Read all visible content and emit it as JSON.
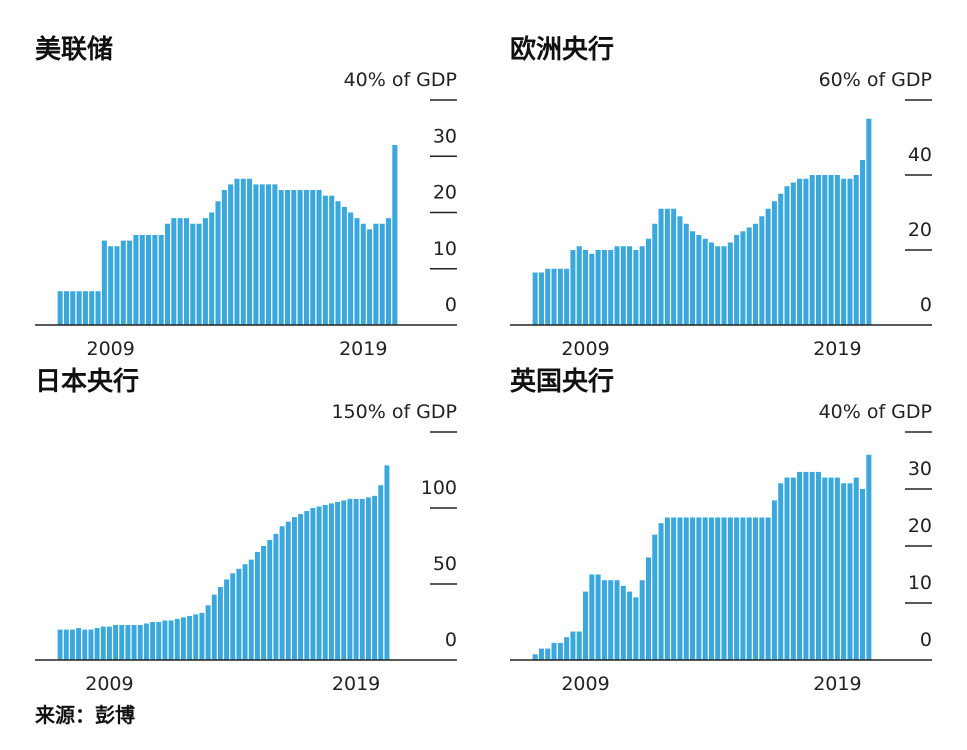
{
  "source": "来源：彭博",
  "chart_data": [
    {
      "type": "bar",
      "title": "美联储",
      "color": "#3aa8dc",
      "categories": [
        null,
        null,
        null,
        null,
        null,
        null,
        null,
        null,
        "2009",
        null,
        null,
        null,
        null,
        null,
        null,
        null,
        null,
        null,
        null,
        null,
        null,
        null,
        null,
        null,
        null,
        null,
        null,
        null,
        null,
        null,
        null,
        null,
        null,
        null,
        null,
        null,
        null,
        null,
        null,
        null,
        null,
        null,
        null,
        null,
        null,
        null,
        null,
        null,
        "2019",
        null,
        null,
        null,
        null,
        null
      ],
      "values": [
        6,
        6,
        6,
        6,
        6,
        6,
        6,
        15,
        14,
        14,
        15,
        15,
        16,
        16,
        16,
        16,
        16,
        18,
        19,
        19,
        19,
        18,
        18,
        19,
        20,
        22,
        24,
        25,
        26,
        26,
        26,
        25,
        25,
        25,
        25,
        24,
        24,
        24,
        24,
        24,
        24,
        24,
        23,
        23,
        22,
        21,
        20,
        19,
        18,
        17,
        18,
        18,
        19,
        32
      ],
      "ylim": [
        0,
        40
      ],
      "yticks": [
        0,
        10,
        20,
        30,
        {
          "value": 40,
          "label": "40% of GDP"
        }
      ]
    },
    {
      "type": "bar",
      "title": "欧洲央行",
      "color": "#3aa8dc",
      "categories": [
        null,
        null,
        null,
        null,
        null,
        null,
        null,
        null,
        "2009",
        null,
        null,
        null,
        null,
        null,
        null,
        null,
        null,
        null,
        null,
        null,
        null,
        null,
        null,
        null,
        null,
        null,
        null,
        null,
        null,
        null,
        null,
        null,
        null,
        null,
        null,
        null,
        null,
        null,
        null,
        null,
        null,
        null,
        null,
        null,
        null,
        null,
        null,
        null,
        "2019",
        null,
        null,
        null,
        null,
        null
      ],
      "values": [
        14,
        14,
        15,
        15,
        15,
        15,
        20,
        21,
        20,
        19,
        20,
        20,
        20,
        21,
        21,
        21,
        20,
        21,
        23,
        27,
        31,
        31,
        31,
        29,
        27,
        25,
        24,
        23,
        22,
        21,
        21,
        22,
        24,
        25,
        26,
        27,
        29,
        31,
        33,
        35,
        37,
        38,
        39,
        39,
        40,
        40,
        40,
        40,
        40,
        39,
        39,
        40,
        44,
        55
      ],
      "ylim": [
        0,
        60
      ],
      "yticks": [
        0,
        20,
        40,
        {
          "value": 60,
          "label": "60% of GDP"
        }
      ]
    },
    {
      "type": "bar",
      "title": "日本央行",
      "color": "#3aa8dc",
      "categories": [
        null,
        null,
        null,
        null,
        null,
        null,
        null,
        null,
        "2009",
        null,
        null,
        null,
        null,
        null,
        null,
        null,
        null,
        null,
        null,
        null,
        null,
        null,
        null,
        null,
        null,
        null,
        null,
        null,
        null,
        null,
        null,
        null,
        null,
        null,
        null,
        null,
        null,
        null,
        null,
        null,
        null,
        null,
        null,
        null,
        null,
        null,
        null,
        null,
        "2019",
        null,
        null,
        null,
        null,
        null
      ],
      "values": [
        20,
        20,
        20,
        21,
        20,
        20,
        21,
        22,
        22,
        23,
        23,
        23,
        23,
        23,
        24,
        25,
        25,
        26,
        26,
        27,
        28,
        29,
        30,
        31,
        36,
        43,
        48,
        53,
        57,
        60,
        63,
        66,
        71,
        75,
        79,
        83,
        88,
        91,
        94,
        96,
        98,
        100,
        101,
        102,
        103,
        104,
        105,
        106,
        106,
        106,
        107,
        108,
        115,
        128
      ],
      "ylim": [
        0,
        150
      ],
      "yticks": [
        0,
        50,
        100,
        {
          "value": 150,
          "label": "150% of GDP"
        }
      ]
    },
    {
      "type": "bar",
      "title": "英国央行",
      "color": "#3aa8dc",
      "categories": [
        null,
        null,
        null,
        null,
        null,
        null,
        null,
        null,
        "2009",
        null,
        null,
        null,
        null,
        null,
        null,
        null,
        null,
        null,
        null,
        null,
        null,
        null,
        null,
        null,
        null,
        null,
        null,
        null,
        null,
        null,
        null,
        null,
        null,
        null,
        null,
        null,
        null,
        null,
        null,
        null,
        null,
        null,
        null,
        null,
        null,
        null,
        null,
        null,
        "2019",
        null,
        null,
        null,
        null,
        null
      ],
      "values": [
        1,
        2,
        2,
        3,
        3,
        4,
        5,
        5,
        12,
        15,
        15,
        14,
        14,
        14,
        13,
        12,
        11,
        14,
        18,
        22,
        24,
        25,
        25,
        25,
        25,
        25,
        25,
        25,
        25,
        25,
        25,
        25,
        25,
        25,
        25,
        25,
        25,
        25,
        28,
        31,
        32,
        32,
        33,
        33,
        33,
        33,
        32,
        32,
        32,
        31,
        31,
        32,
        30,
        36
      ],
      "ylim": [
        0,
        40
      ],
      "yticks": [
        0,
        10,
        20,
        30,
        {
          "value": 40,
          "label": "40% of GDP"
        }
      ]
    }
  ]
}
